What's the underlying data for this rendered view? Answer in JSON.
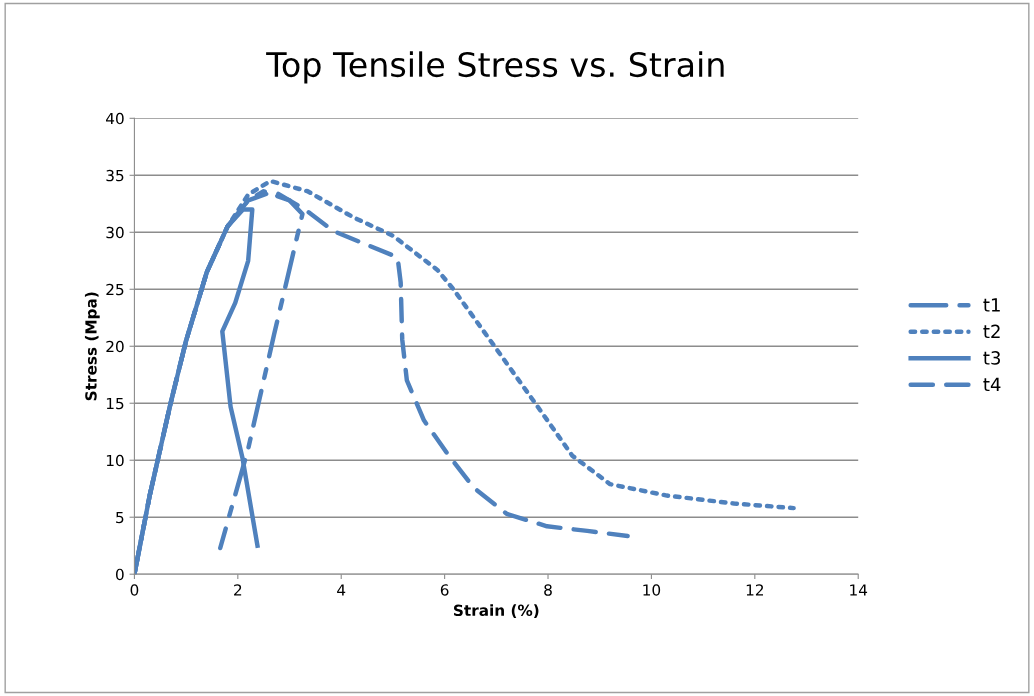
{
  "chart_data": {
    "type": "line",
    "title": "Top Tensile Stress vs. Strain",
    "xlabel": "Strain (%)",
    "ylabel": "Stress (Mpa)",
    "xlim": [
      0,
      14
    ],
    "xticks": [
      0,
      2,
      4,
      6,
      8,
      10,
      12,
      14
    ],
    "ylim": [
      0,
      40
    ],
    "yticks": [
      0,
      5,
      10,
      15,
      20,
      25,
      30,
      35,
      40
    ],
    "grid": "y",
    "legend": "right",
    "marker": "none",
    "series": [
      {
        "name": "t1",
        "color": "#4f81bd",
        "line_style": "dashdot",
        "x": [
          0,
          0.3,
          0.7,
          1.0,
          1.4,
          1.8,
          2.2,
          2.5,
          3.0,
          3.25,
          2.7,
          2.2,
          1.66
        ],
        "values": [
          0,
          7,
          15,
          20.5,
          26.5,
          30.5,
          32.8,
          33.6,
          32.8,
          31.6,
          21,
          11,
          2.3
        ]
      },
      {
        "name": "t2",
        "color": "#4f81bd",
        "line_style": "dotted",
        "x": [
          0,
          0.3,
          0.7,
          1.0,
          1.4,
          1.8,
          2.2,
          2.63,
          3.35,
          4.24,
          5.0,
          5.86,
          6.17,
          6.98,
          7.8,
          8.47,
          9.2,
          10.3,
          11.6,
          12.75
        ],
        "values": [
          0,
          7,
          15,
          20.5,
          26.5,
          30.5,
          33.3,
          34.5,
          33.6,
          31.3,
          29.7,
          26.7,
          25.0,
          19.9,
          14.7,
          10.4,
          7.9,
          6.9,
          6.2,
          5.8
        ]
      },
      {
        "name": "t3",
        "color": "#4f81bd",
        "line_style": "solid",
        "x": [
          0,
          0.3,
          0.7,
          1.0,
          1.4,
          1.8,
          2.1,
          2.28,
          2.2,
          1.95,
          1.7,
          1.86,
          2.09,
          2.38
        ],
        "values": [
          0,
          7,
          15,
          20.5,
          26.5,
          30.5,
          32,
          32,
          27.5,
          23.8,
          21.3,
          14.7,
          10.2,
          2.5
        ]
      },
      {
        "name": "t4",
        "color": "#4f81bd",
        "line_style": "dashed",
        "x": [
          0,
          0.3,
          0.7,
          1.0,
          1.4,
          1.8,
          2.2,
          2.7,
          3.3,
          3.85,
          4.5,
          5.09,
          5.15,
          5.18,
          5.27,
          5.6,
          6.05,
          6.56,
          7.2,
          7.98,
          8.76,
          9.54
        ],
        "values": [
          0,
          7,
          15,
          20.5,
          26.5,
          30.5,
          32.8,
          33.6,
          32,
          30.1,
          28.9,
          27.8,
          25.6,
          20.6,
          17.0,
          13.5,
          10.6,
          7.6,
          5.3,
          4.2,
          3.8,
          3.35
        ]
      }
    ]
  }
}
